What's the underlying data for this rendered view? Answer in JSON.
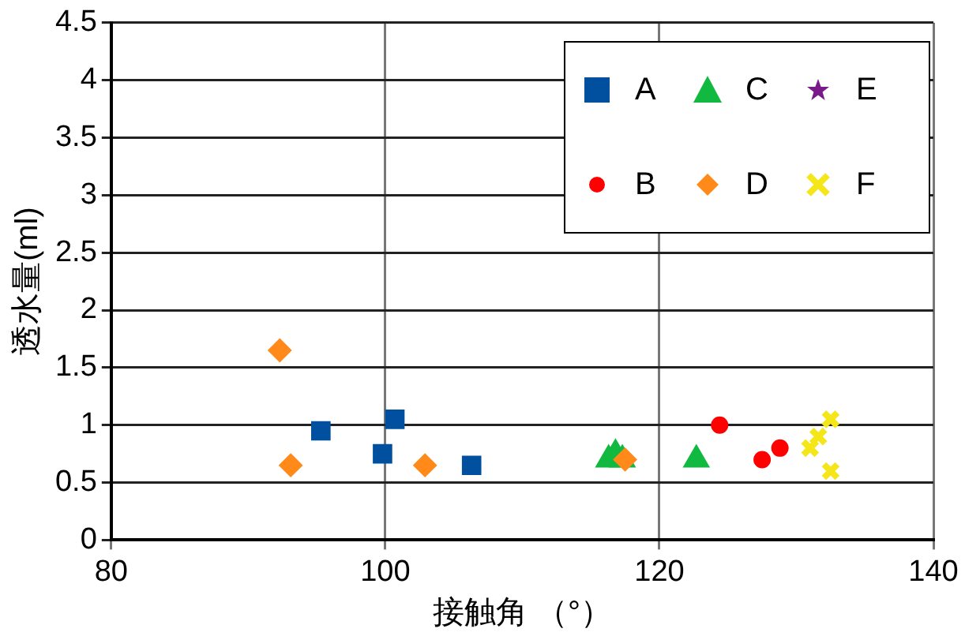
{
  "chart_data": {
    "type": "scatter",
    "xlabel": "接触角 （°）",
    "ylabel": "透水量(ml)",
    "xlim": [
      80,
      140
    ],
    "xticks": [
      80,
      100,
      120,
      140
    ],
    "ylim": [
      0,
      4.5
    ],
    "yticks": [
      0,
      0.5,
      1,
      1.5,
      2,
      2.5,
      3,
      3.5,
      4,
      4.5
    ],
    "grid": true,
    "legend": "top right",
    "series": [
      {
        "name": "A",
        "color": "#00509f",
        "marker": "square",
        "x": [
          95.3,
          99.8,
          100.7,
          106.3
        ],
        "values": [
          0.95,
          0.75,
          1.05,
          0.65
        ]
      },
      {
        "name": "B",
        "color": "#ff0000",
        "marker": "circle",
        "x": [
          124.4,
          127.5,
          128.8
        ],
        "values": [
          1.0,
          0.7,
          0.8
        ]
      },
      {
        "name": "C",
        "color": "#11b940",
        "marker": "triangle",
        "x": [
          116.3,
          116.8,
          117.3,
          122.7
        ],
        "values": [
          0.7,
          0.75,
          0.7,
          0.7
        ]
      },
      {
        "name": "D",
        "color": "#ff8a1a",
        "marker": "diamond",
        "x": [
          92.3,
          93.1,
          102.9,
          117.5
        ],
        "values": [
          1.65,
          0.65,
          0.65,
          0.7
        ]
      },
      {
        "name": "E",
        "color": "#7a1a8a",
        "marker": "star"
      },
      {
        "name": "F",
        "color": "#f5e61a",
        "marker": "cross",
        "x": [
          131,
          131.6,
          132.5,
          132.5
        ],
        "values": [
          0.8,
          0.9,
          1.05,
          0.6
        ]
      }
    ]
  }
}
